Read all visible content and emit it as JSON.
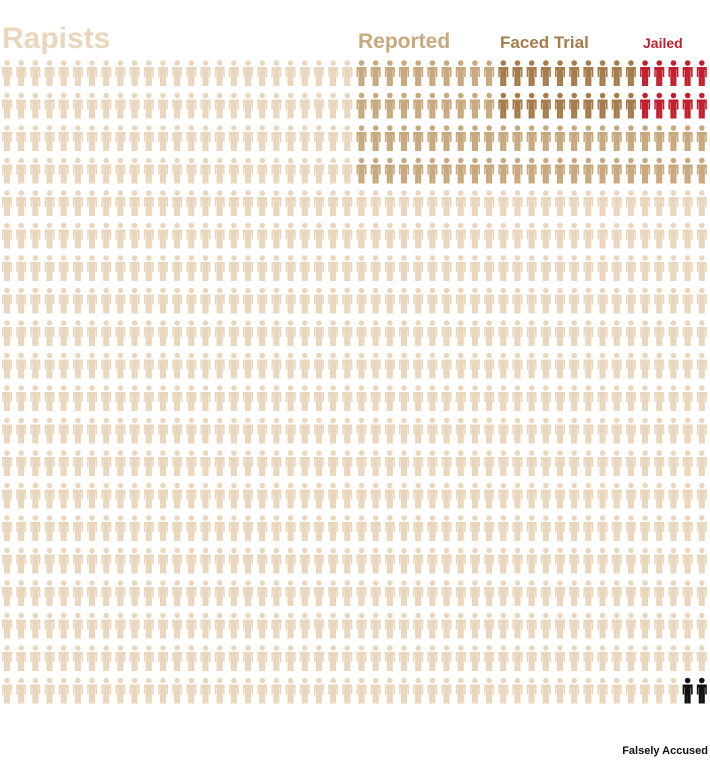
{
  "groups": [
    {
      "label": "Rapists",
      "count": 898,
      "color": "#ead6bc"
    },
    {
      "label": "Reported",
      "count": 70,
      "color": "#c8a87d"
    },
    {
      "label": "Faced Trial",
      "count": 20,
      "color": "#a67c4c"
    },
    {
      "label": "Jailed",
      "count": 10,
      "color": "#c21f2f"
    },
    {
      "label": "Falsely Accused",
      "count": 2,
      "color": "#111111"
    }
  ]
}
